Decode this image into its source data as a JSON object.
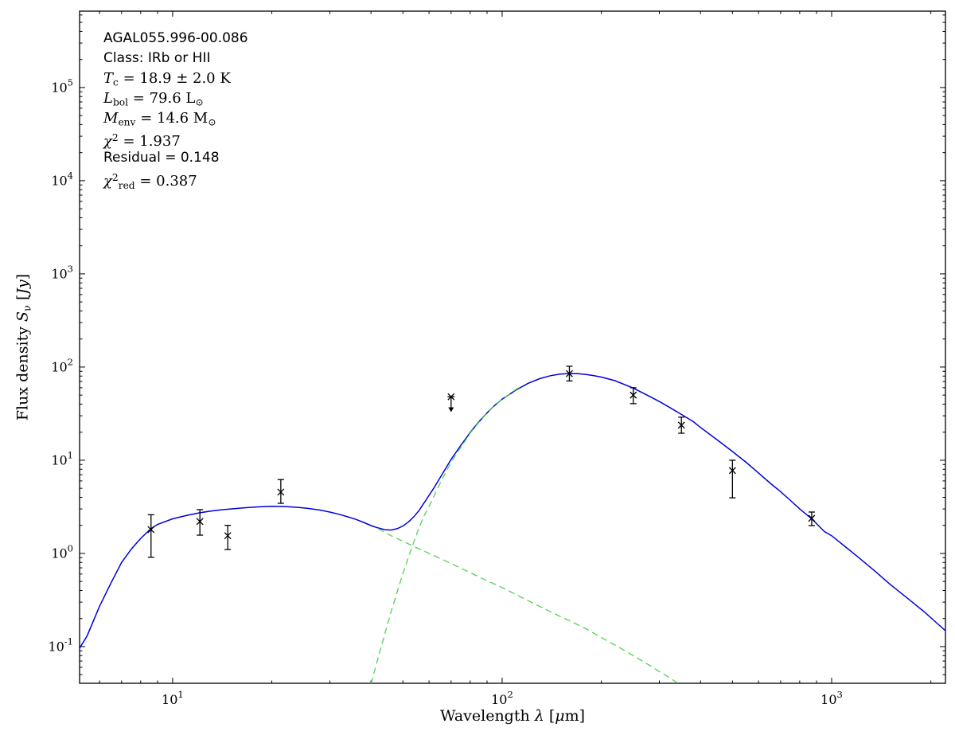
{
  "figure": {
    "background": "#ffffff",
    "axes_color": "#000000"
  },
  "annotation": {
    "lines": [
      {
        "font": "sans",
        "tokens": [
          [
            "t",
            "AGAL055.996-00.086"
          ]
        ]
      },
      {
        "font": "sans",
        "tokens": [
          [
            "t",
            "Class: IRb or HII"
          ]
        ]
      },
      {
        "font": "math",
        "tokens": [
          [
            "i",
            "T"
          ],
          [
            "sub",
            "c"
          ],
          [
            "t",
            " = 18.9 ± 2.0 K"
          ]
        ]
      },
      {
        "font": "math",
        "tokens": [
          [
            "i",
            "L"
          ],
          [
            "sub",
            "bol"
          ],
          [
            "t",
            " = 79.6 L"
          ],
          [
            "sub",
            "⊙"
          ]
        ]
      },
      {
        "font": "math",
        "tokens": [
          [
            "i",
            "M"
          ],
          [
            "sub",
            "env"
          ],
          [
            "t",
            " = 14.6 M"
          ],
          [
            "sub",
            "⊙"
          ]
        ]
      },
      {
        "font": "math",
        "tokens": [
          [
            "i",
            "χ"
          ],
          [
            "sup",
            "2"
          ],
          [
            "t",
            " = 1.937"
          ]
        ]
      },
      {
        "font": "sans",
        "tokens": [
          [
            "t",
            "Residual = 0.148"
          ]
        ]
      },
      {
        "font": "math",
        "tokens": [
          [
            "i",
            "χ"
          ],
          [
            "sup",
            "2"
          ],
          [
            "sub",
            "red"
          ],
          [
            "t",
            " = 0.387"
          ]
        ]
      }
    ]
  },
  "chart_data": {
    "type": "line",
    "title": "",
    "xlabel": "Wavelength λ [μm]",
    "ylabel": "Flux density S_ν [Jy]",
    "xlabel_tokens": [
      [
        "t",
        "Wavelength "
      ],
      [
        "i",
        "λ"
      ],
      [
        "t",
        " ["
      ],
      [
        "i",
        "μ"
      ],
      [
        "t",
        "m]"
      ]
    ],
    "ylabel_tokens": [
      [
        "t",
        "Flux density "
      ],
      [
        "i",
        "S"
      ],
      [
        "sub",
        "ν"
      ],
      [
        "t",
        " ["
      ],
      [
        "i",
        "Jy"
      ],
      [
        "t",
        "]"
      ]
    ],
    "xscale": "log",
    "yscale": "log",
    "grid": false,
    "legend": "none",
    "xlim": [
      5.22,
      2215
    ],
    "ylim": [
      0.0404,
      660000
    ],
    "tick_label_base": "10",
    "x_ticks": [
      {
        "value": 10,
        "exp": "1"
      },
      {
        "value": 100,
        "exp": "2"
      },
      {
        "value": 1000,
        "exp": "3"
      }
    ],
    "y_ticks": [
      {
        "value": 0.1,
        "exp": "-1"
      },
      {
        "value": 1,
        "exp": "0"
      },
      {
        "value": 10,
        "exp": "1"
      },
      {
        "value": 100,
        "exp": "2"
      },
      {
        "value": 1000,
        "exp": "3"
      },
      {
        "value": 10000,
        "exp": "4"
      },
      {
        "value": 100000,
        "exp": "5"
      }
    ],
    "series": [
      {
        "name": "total-model-fit",
        "color": "#0000dd",
        "dash": "solid",
        "width": 1.5,
        "points": [
          [
            4.6,
            0.045
          ],
          [
            5,
            0.075
          ],
          [
            5.5,
            0.13
          ],
          [
            6,
            0.27
          ],
          [
            6.5,
            0.48
          ],
          [
            7,
            0.8
          ],
          [
            7.5,
            1.12
          ],
          [
            8,
            1.45
          ],
          [
            8.6,
            1.85
          ],
          [
            9,
            2.05
          ],
          [
            10,
            2.35
          ],
          [
            11,
            2.55
          ],
          [
            12,
            2.72
          ],
          [
            13,
            2.84
          ],
          [
            14,
            2.93
          ],
          [
            15,
            3.0
          ],
          [
            16,
            3.06
          ],
          [
            17,
            3.11
          ],
          [
            18,
            3.15
          ],
          [
            19,
            3.18
          ],
          [
            20,
            3.2
          ],
          [
            22,
            3.18
          ],
          [
            24,
            3.12
          ],
          [
            26,
            3.03
          ],
          [
            28,
            2.92
          ],
          [
            30,
            2.78
          ],
          [
            32,
            2.63
          ],
          [
            34,
            2.47
          ],
          [
            36,
            2.32
          ],
          [
            38,
            2.15
          ],
          [
            40,
            1.99
          ],
          [
            42,
            1.88
          ],
          [
            44,
            1.8
          ],
          [
            46,
            1.78
          ],
          [
            48,
            1.84
          ],
          [
            50,
            1.97
          ],
          [
            52,
            2.18
          ],
          [
            54,
            2.48
          ],
          [
            56,
            2.9
          ],
          [
            58,
            3.5
          ],
          [
            60,
            4.2
          ],
          [
            62,
            5.0
          ],
          [
            65,
            6.6
          ],
          [
            68,
            8.6
          ],
          [
            70,
            10.2
          ],
          [
            75,
            14.5
          ],
          [
            80,
            19.8
          ],
          [
            85,
            25.8
          ],
          [
            90,
            32.2
          ],
          [
            95,
            38.8
          ],
          [
            100,
            45.2
          ],
          [
            110,
            56.5
          ],
          [
            120,
            67.0
          ],
          [
            130,
            75.0
          ],
          [
            140,
            80.8
          ],
          [
            150,
            84.0
          ],
          [
            160,
            85.3
          ],
          [
            170,
            84.8
          ],
          [
            180,
            83.2
          ],
          [
            190,
            80.8
          ],
          [
            200,
            78.0
          ],
          [
            220,
            71.5
          ],
          [
            250,
            59.5
          ],
          [
            280,
            48.5
          ],
          [
            300,
            42.7
          ],
          [
            320,
            37.5
          ],
          [
            350,
            31.0
          ],
          [
            380,
            26.0
          ],
          [
            400,
            22.5
          ],
          [
            450,
            16.5
          ],
          [
            500,
            12.4
          ],
          [
            550,
            9.5
          ],
          [
            600,
            7.3
          ],
          [
            650,
            5.7
          ],
          [
            700,
            4.6
          ],
          [
            750,
            3.7
          ],
          [
            800,
            3.0
          ],
          [
            870,
            2.35
          ],
          [
            950,
            1.72
          ],
          [
            1000,
            1.55
          ],
          [
            1100,
            1.18
          ],
          [
            1200,
            0.92
          ],
          [
            1350,
            0.65
          ],
          [
            1500,
            0.47
          ],
          [
            1700,
            0.33
          ],
          [
            1900,
            0.24
          ],
          [
            2100,
            0.175
          ],
          [
            2215,
            0.148
          ]
        ]
      },
      {
        "name": "cold-component",
        "color": "#4fd44f",
        "dash": "dashed",
        "width": 1.3,
        "points": [
          [
            40,
            0.04
          ],
          [
            42,
            0.075
          ],
          [
            44,
            0.135
          ],
          [
            46,
            0.235
          ],
          [
            48,
            0.385
          ],
          [
            50,
            0.61
          ],
          [
            52,
            0.92
          ],
          [
            54,
            1.33
          ],
          [
            56,
            1.9
          ],
          [
            58,
            2.55
          ],
          [
            60,
            3.2
          ],
          [
            63,
            4.6
          ],
          [
            66,
            6.4
          ],
          [
            70,
            9.5
          ],
          [
            75,
            13.8
          ],
          [
            80,
            19.5
          ],
          [
            85,
            25.5
          ],
          [
            90,
            32.0
          ],
          [
            95,
            38.5
          ],
          [
            100,
            45.0
          ],
          [
            105,
            51.0
          ],
          [
            110,
            57.5
          ],
          [
            115,
            63.0
          ]
        ]
      },
      {
        "name": "warm-component",
        "color": "#4fd44f",
        "dash": "dashed",
        "width": 1.3,
        "points": [
          [
            42,
            1.85
          ],
          [
            46,
            1.55
          ],
          [
            50,
            1.35
          ],
          [
            55,
            1.15
          ],
          [
            60,
            1.0
          ],
          [
            65,
            0.88
          ],
          [
            70,
            0.78
          ],
          [
            80,
            0.62
          ],
          [
            90,
            0.51
          ],
          [
            100,
            0.43
          ],
          [
            115,
            0.335
          ],
          [
            130,
            0.27
          ],
          [
            150,
            0.21
          ],
          [
            160,
            0.19
          ],
          [
            180,
            0.155
          ],
          [
            200,
            0.125
          ],
          [
            230,
            0.095
          ],
          [
            250,
            0.08
          ],
          [
            280,
            0.063
          ],
          [
            300,
            0.054
          ],
          [
            320,
            0.047
          ],
          [
            345,
            0.0395
          ]
        ]
      }
    ],
    "data_points": {
      "marker": "x",
      "color": "#000000",
      "points": [
        {
          "wavelength_um": 8.6,
          "flux_jy": 1.8,
          "err_lo_jy": 0.91,
          "err_hi_jy": 2.6
        },
        {
          "wavelength_um": 12.1,
          "flux_jy": 2.2,
          "err_lo_jy": 1.57,
          "err_hi_jy": 2.95
        },
        {
          "wavelength_um": 14.7,
          "flux_jy": 1.55,
          "err_lo_jy": 1.1,
          "err_hi_jy": 2.0
        },
        {
          "wavelength_um": 21.3,
          "flux_jy": 4.55,
          "err_lo_jy": 3.45,
          "err_hi_jy": 6.2
        },
        {
          "wavelength_um": 160,
          "flux_jy": 85,
          "err_lo_jy": 71,
          "err_hi_jy": 102
        },
        {
          "wavelength_um": 250,
          "flux_jy": 50,
          "err_lo_jy": 40.5,
          "err_hi_jy": 60
        },
        {
          "wavelength_um": 350,
          "flux_jy": 23.8,
          "err_lo_jy": 19.5,
          "err_hi_jy": 29
        },
        {
          "wavelength_um": 500,
          "flux_jy": 7.75,
          "err_lo_jy": 3.95,
          "err_hi_jy": 10.0
        },
        {
          "wavelength_um": 870,
          "flux_jy": 2.38,
          "err_lo_jy": 1.99,
          "err_hi_jy": 2.78
        }
      ]
    },
    "upper_limits": [
      {
        "wavelength_um": 70,
        "flux_jy": 48,
        "arrow_tip_jy": 37
      }
    ]
  }
}
